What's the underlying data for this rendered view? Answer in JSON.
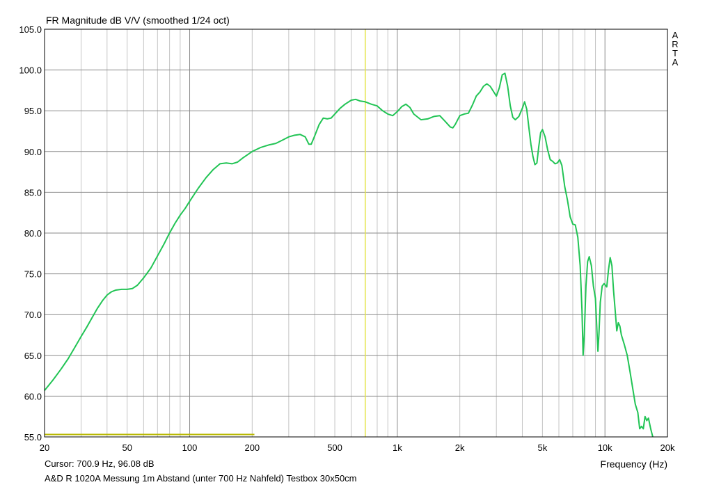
{
  "chart_data": {
    "type": "line",
    "title": "FR Magnitude dB V/V (smoothed 1/24 oct)",
    "xlabel": "Frequency (Hz)",
    "ylabel": "",
    "xscale": "log",
    "xlim": [
      20,
      20000
    ],
    "ylim": [
      55.0,
      105.0
    ],
    "x_ticks": [
      {
        "value": 20,
        "label": "20"
      },
      {
        "value": 50,
        "label": "50"
      },
      {
        "value": 100,
        "label": "100"
      },
      {
        "value": 200,
        "label": "200"
      },
      {
        "value": 500,
        "label": "500"
      },
      {
        "value": 1000,
        "label": "1k"
      },
      {
        "value": 2000,
        "label": "2k"
      },
      {
        "value": 5000,
        "label": "5k"
      },
      {
        "value": 10000,
        "label": "10k"
      },
      {
        "value": 20000,
        "label": "20k"
      }
    ],
    "y_ticks": [
      "55.0",
      "60.0",
      "65.0",
      "70.0",
      "75.0",
      "80.0",
      "85.0",
      "90.0",
      "95.0",
      "100.0",
      "105.0"
    ],
    "grid": true,
    "side_label": [
      "A",
      "R",
      "T",
      "A"
    ],
    "cursor": {
      "frequency": 700.9,
      "level": 96.08,
      "text": "Cursor: 700.9 Hz, 96.08 dB",
      "color": "#e6e64d"
    },
    "reference_line": {
      "level": 55.3,
      "x_start": 20,
      "x_end": 205,
      "color": "#b8b800"
    },
    "caption": "A&D R 1020A Messung 1m Abstand (unter 700 Hz Nahfeld) Testbox 30x50cm",
    "series": [
      {
        "color": "#22c455",
        "points": [
          [
            20,
            60.7
          ],
          [
            22,
            62.0
          ],
          [
            24,
            63.3
          ],
          [
            26,
            64.6
          ],
          [
            28,
            66.0
          ],
          [
            30,
            67.3
          ],
          [
            32,
            68.5
          ],
          [
            34,
            69.7
          ],
          [
            36,
            70.8
          ],
          [
            38,
            71.7
          ],
          [
            40,
            72.4
          ],
          [
            42,
            72.8
          ],
          [
            44,
            73.0
          ],
          [
            47,
            73.1
          ],
          [
            50,
            73.1
          ],
          [
            53,
            73.2
          ],
          [
            56,
            73.6
          ],
          [
            60,
            74.5
          ],
          [
            65,
            75.7
          ],
          [
            70,
            77.2
          ],
          [
            75,
            78.6
          ],
          [
            80,
            80.0
          ],
          [
            85,
            81.2
          ],
          [
            90,
            82.2
          ],
          [
            95,
            83.0
          ],
          [
            100,
            83.9
          ],
          [
            110,
            85.5
          ],
          [
            120,
            86.8
          ],
          [
            130,
            87.8
          ],
          [
            140,
            88.5
          ],
          [
            150,
            88.6
          ],
          [
            160,
            88.5
          ],
          [
            170,
            88.7
          ],
          [
            180,
            89.2
          ],
          [
            200,
            90.0
          ],
          [
            220,
            90.5
          ],
          [
            240,
            90.8
          ],
          [
            260,
            91.0
          ],
          [
            280,
            91.4
          ],
          [
            300,
            91.8
          ],
          [
            320,
            92.0
          ],
          [
            340,
            92.1
          ],
          [
            360,
            91.8
          ],
          [
            375,
            90.9
          ],
          [
            385,
            90.9
          ],
          [
            400,
            91.9
          ],
          [
            420,
            93.3
          ],
          [
            440,
            94.1
          ],
          [
            460,
            94.0
          ],
          [
            480,
            94.1
          ],
          [
            500,
            94.6
          ],
          [
            530,
            95.3
          ],
          [
            560,
            95.8
          ],
          [
            600,
            96.3
          ],
          [
            630,
            96.4
          ],
          [
            660,
            96.2
          ],
          [
            700,
            96.1
          ],
          [
            750,
            95.8
          ],
          [
            800,
            95.6
          ],
          [
            850,
            95.0
          ],
          [
            900,
            94.6
          ],
          [
            950,
            94.4
          ],
          [
            1000,
            94.9
          ],
          [
            1050,
            95.5
          ],
          [
            1100,
            95.8
          ],
          [
            1150,
            95.4
          ],
          [
            1200,
            94.6
          ],
          [
            1300,
            93.9
          ],
          [
            1400,
            94.0
          ],
          [
            1500,
            94.3
          ],
          [
            1600,
            94.4
          ],
          [
            1700,
            93.7
          ],
          [
            1800,
            93.0
          ],
          [
            1850,
            92.9
          ],
          [
            1900,
            93.3
          ],
          [
            2000,
            94.4
          ],
          [
            2100,
            94.6
          ],
          [
            2200,
            94.7
          ],
          [
            2300,
            95.7
          ],
          [
            2400,
            96.8
          ],
          [
            2500,
            97.3
          ],
          [
            2600,
            98.0
          ],
          [
            2700,
            98.3
          ],
          [
            2800,
            98.0
          ],
          [
            2900,
            97.4
          ],
          [
            3000,
            96.8
          ],
          [
            3100,
            97.8
          ],
          [
            3200,
            99.4
          ],
          [
            3300,
            99.6
          ],
          [
            3400,
            98.0
          ],
          [
            3500,
            95.6
          ],
          [
            3600,
            94.2
          ],
          [
            3700,
            93.9
          ],
          [
            3850,
            94.3
          ],
          [
            4000,
            95.3
          ],
          [
            4100,
            96.1
          ],
          [
            4200,
            95.2
          ],
          [
            4300,
            93.0
          ],
          [
            4400,
            90.9
          ],
          [
            4500,
            89.4
          ],
          [
            4600,
            88.4
          ],
          [
            4700,
            88.6
          ],
          [
            4800,
            90.6
          ],
          [
            4900,
            92.3
          ],
          [
            5000,
            92.7
          ],
          [
            5150,
            91.8
          ],
          [
            5300,
            90.2
          ],
          [
            5450,
            89.0
          ],
          [
            5600,
            88.8
          ],
          [
            5750,
            88.5
          ],
          [
            5900,
            88.6
          ],
          [
            6050,
            89.0
          ],
          [
            6200,
            88.3
          ],
          [
            6400,
            85.7
          ],
          [
            6600,
            84.0
          ],
          [
            6800,
            82.0
          ],
          [
            7000,
            81.1
          ],
          [
            7200,
            81.0
          ],
          [
            7400,
            79.5
          ],
          [
            7600,
            76.0
          ],
          [
            7750,
            70.5
          ],
          [
            7850,
            65.0
          ],
          [
            7950,
            67.5
          ],
          [
            8100,
            73.5
          ],
          [
            8250,
            76.5
          ],
          [
            8400,
            77.1
          ],
          [
            8600,
            76.0
          ],
          [
            8800,
            73.5
          ],
          [
            9000,
            72.0
          ],
          [
            9150,
            68.0
          ],
          [
            9250,
            65.5
          ],
          [
            9350,
            67.5
          ],
          [
            9500,
            71.5
          ],
          [
            9700,
            73.5
          ],
          [
            9900,
            73.8
          ],
          [
            10200,
            73.4
          ],
          [
            10400,
            75.5
          ],
          [
            10600,
            77.0
          ],
          [
            10800,
            76.0
          ],
          [
            11000,
            73.0
          ],
          [
            11200,
            70.5
          ],
          [
            11400,
            68.0
          ],
          [
            11600,
            69.0
          ],
          [
            11800,
            68.6
          ],
          [
            12000,
            67.5
          ],
          [
            12400,
            66.3
          ],
          [
            12800,
            65.0
          ],
          [
            13200,
            63.0
          ],
          [
            13600,
            61.0
          ],
          [
            14000,
            59.0
          ],
          [
            14400,
            58.0
          ],
          [
            14700,
            56.0
          ],
          [
            15000,
            56.3
          ],
          [
            15300,
            56.0
          ],
          [
            15600,
            57.5
          ],
          [
            15900,
            57.0
          ],
          [
            16200,
            57.3
          ],
          [
            16600,
            56.0
          ],
          [
            17000,
            55.0
          ]
        ]
      }
    ]
  }
}
